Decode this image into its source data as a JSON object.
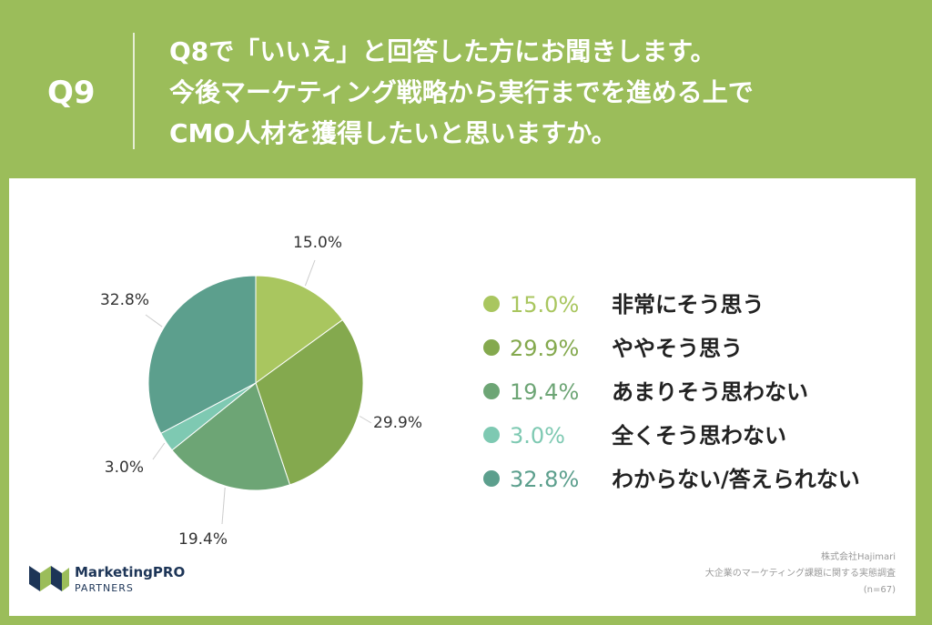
{
  "header": {
    "q_number": "Q9",
    "question_lines": [
      "Q8で「いいえ」と回答した方にお聞きします。",
      "今後マーケティング戦略から実行までを進める上で",
      "CMO人材を獲得したいと思いますか。"
    ]
  },
  "chart_data": {
    "type": "pie",
    "categories": [
      "非常にそう思う",
      "ややそう思う",
      "あまりそう思わない",
      "全くそう思わない",
      "わからない/答えられない"
    ],
    "values": [
      15.0,
      29.9,
      19.4,
      3.0,
      32.8
    ],
    "value_labels": [
      "15.0%",
      "29.9%",
      "19.4%",
      "3.0%",
      "32.8%"
    ],
    "colors": [
      "#a9c65f",
      "#84a94e",
      "#6da575",
      "#7ec9b2",
      "#5c9f8d"
    ],
    "legend_placement": "right",
    "start_angle": "12 o'clock, clockwise"
  },
  "brand": {
    "name": "MarketingPRO",
    "sub": "PARTNERS",
    "logo_icon": "brand-logo-icon"
  },
  "source": {
    "lines": [
      "株式会社Hajimari",
      "大企業のマーケティング課題に関する実態調査",
      "(n=67)"
    ]
  }
}
